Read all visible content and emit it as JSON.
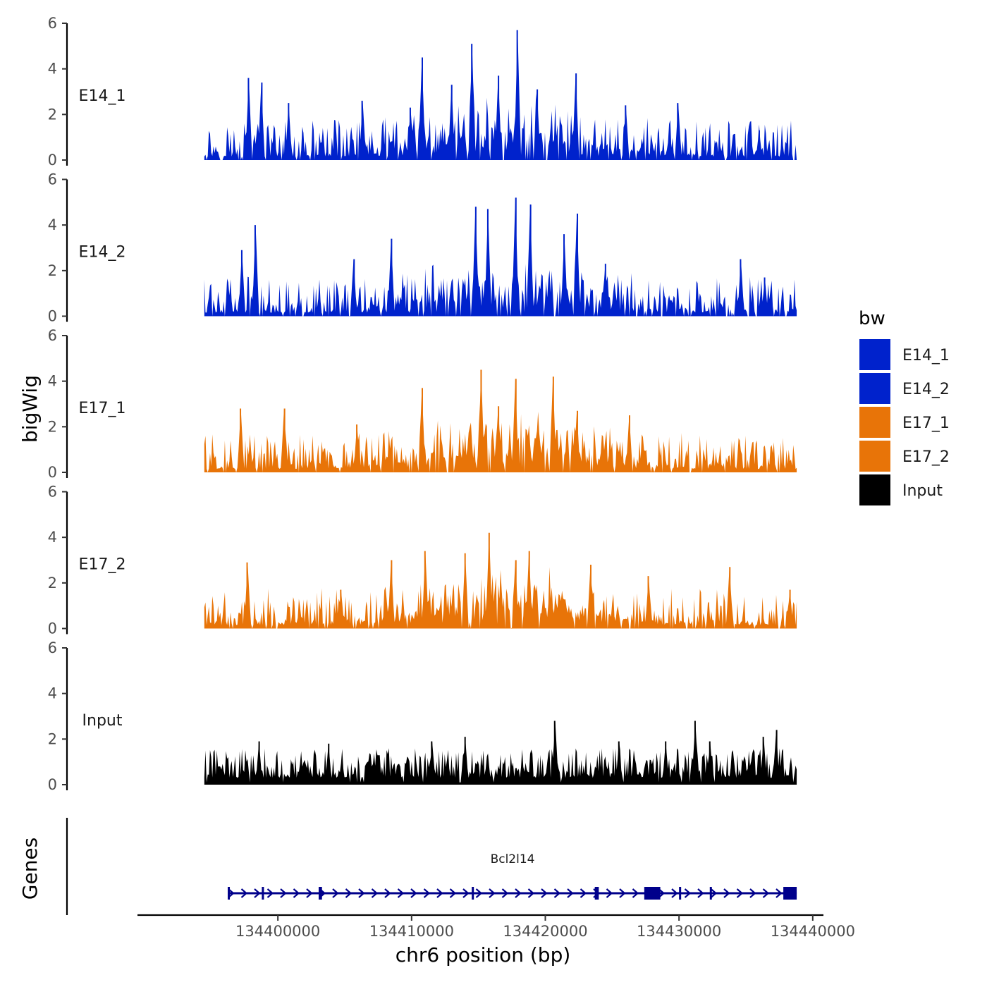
{
  "chart_data": {
    "type": "area",
    "chromosome": "chr6",
    "xlabel": "chr6 position (bp)",
    "ylabel": "bigWig",
    "genes_label": "Genes",
    "xlim": [
      134389500,
      134440800
    ],
    "x_ticks": [
      134400000,
      134410000,
      134420000,
      134430000,
      134440000
    ],
    "x_tick_labels": [
      "134400000",
      "134410000",
      "134420000",
      "134430000",
      "134440000"
    ],
    "ylim": [
      0,
      6
    ],
    "y_ticks": [
      0,
      2,
      4,
      6
    ],
    "y_tick_labels": [
      "0",
      "2",
      "4",
      "6"
    ],
    "data_range": [
      134394500,
      134438800
    ],
    "legend": {
      "title": "bw",
      "entries": [
        {
          "label": "E14_1",
          "color": "#0022cc"
        },
        {
          "label": "E14_2",
          "color": "#0022cc"
        },
        {
          "label": "E17_1",
          "color": "#e87408"
        },
        {
          "label": "E17_2",
          "color": "#e87408"
        },
        {
          "label": "Input",
          "color": "#000000"
        }
      ]
    },
    "series": [
      {
        "name": "E14_1",
        "color": "#0022cc",
        "peaks": [
          {
            "x": 134397800,
            "y": 3.6
          },
          {
            "x": 134398800,
            "y": 3.4
          },
          {
            "x": 134400800,
            "y": 2.5
          },
          {
            "x": 134406300,
            "y": 2.6
          },
          {
            "x": 134409900,
            "y": 2.3
          },
          {
            "x": 134410800,
            "y": 4.5
          },
          {
            "x": 134413000,
            "y": 3.3
          },
          {
            "x": 134414500,
            "y": 5.1
          },
          {
            "x": 134416500,
            "y": 3.7
          },
          {
            "x": 134417900,
            "y": 5.7
          },
          {
            "x": 134419400,
            "y": 3.1
          },
          {
            "x": 134422300,
            "y": 3.8
          },
          {
            "x": 134426000,
            "y": 2.4
          },
          {
            "x": 134429900,
            "y": 2.5
          },
          {
            "x": 134436000,
            "y": 1.3
          }
        ]
      },
      {
        "name": "E14_2",
        "color": "#0022cc",
        "peaks": [
          {
            "x": 134397300,
            "y": 2.9
          },
          {
            "x": 134398300,
            "y": 4.0
          },
          {
            "x": 134405700,
            "y": 2.5
          },
          {
            "x": 134408500,
            "y": 3.4
          },
          {
            "x": 134414800,
            "y": 4.8
          },
          {
            "x": 134415700,
            "y": 4.7
          },
          {
            "x": 134417800,
            "y": 5.2
          },
          {
            "x": 134418900,
            "y": 4.9
          },
          {
            "x": 134421400,
            "y": 3.6
          },
          {
            "x": 134422400,
            "y": 4.5
          },
          {
            "x": 134424500,
            "y": 2.3
          },
          {
            "x": 134434600,
            "y": 2.5
          },
          {
            "x": 134436400,
            "y": 1.7
          }
        ]
      },
      {
        "name": "E17_1",
        "color": "#e87408",
        "peaks": [
          {
            "x": 134397200,
            "y": 2.8
          },
          {
            "x": 134400500,
            "y": 2.8
          },
          {
            "x": 134405900,
            "y": 2.1
          },
          {
            "x": 134410800,
            "y": 3.7
          },
          {
            "x": 134415200,
            "y": 4.5
          },
          {
            "x": 134416500,
            "y": 2.9
          },
          {
            "x": 134417800,
            "y": 4.1
          },
          {
            "x": 134420600,
            "y": 4.2
          },
          {
            "x": 134422400,
            "y": 2.7
          },
          {
            "x": 134426300,
            "y": 2.5
          },
          {
            "x": 134434500,
            "y": 1.4
          }
        ]
      },
      {
        "name": "E17_2",
        "color": "#e87408",
        "peaks": [
          {
            "x": 134397700,
            "y": 2.9
          },
          {
            "x": 134404700,
            "y": 1.7
          },
          {
            "x": 134408500,
            "y": 3.0
          },
          {
            "x": 134411000,
            "y": 3.4
          },
          {
            "x": 134414000,
            "y": 3.3
          },
          {
            "x": 134415800,
            "y": 4.2
          },
          {
            "x": 134417800,
            "y": 3.0
          },
          {
            "x": 134418800,
            "y": 3.4
          },
          {
            "x": 134423400,
            "y": 2.8
          },
          {
            "x": 134427700,
            "y": 2.3
          },
          {
            "x": 134433800,
            "y": 2.7
          },
          {
            "x": 134438300,
            "y": 1.7
          }
        ]
      },
      {
        "name": "Input",
        "color": "#000000",
        "peaks": [
          {
            "x": 134398600,
            "y": 1.9
          },
          {
            "x": 134403800,
            "y": 1.8
          },
          {
            "x": 134411500,
            "y": 1.9
          },
          {
            "x": 134414000,
            "y": 2.1
          },
          {
            "x": 134420700,
            "y": 2.8
          },
          {
            "x": 134425500,
            "y": 1.9
          },
          {
            "x": 134429000,
            "y": 1.9
          },
          {
            "x": 134431200,
            "y": 2.8
          },
          {
            "x": 134432300,
            "y": 1.9
          },
          {
            "x": 134436300,
            "y": 2.1
          },
          {
            "x": 134437300,
            "y": 2.4
          }
        ]
      }
    ],
    "genes": [
      {
        "name": "Bcl2l14",
        "start": 134396300,
        "end": 134438800,
        "strand": "+",
        "color": "#00008b",
        "exons": [
          {
            "start": 134396250,
            "end": 134396400
          },
          {
            "start": 134398800,
            "end": 134398950
          },
          {
            "start": 134403050,
            "end": 134403300
          },
          {
            "start": 134414500,
            "end": 134414650
          },
          {
            "start": 134423700,
            "end": 134424000
          },
          {
            "start": 134427400,
            "end": 134428600
          },
          {
            "start": 134430000,
            "end": 134430150
          },
          {
            "start": 134432300,
            "end": 134432450
          },
          {
            "start": 134437800,
            "end": 134438800
          }
        ]
      }
    ]
  }
}
